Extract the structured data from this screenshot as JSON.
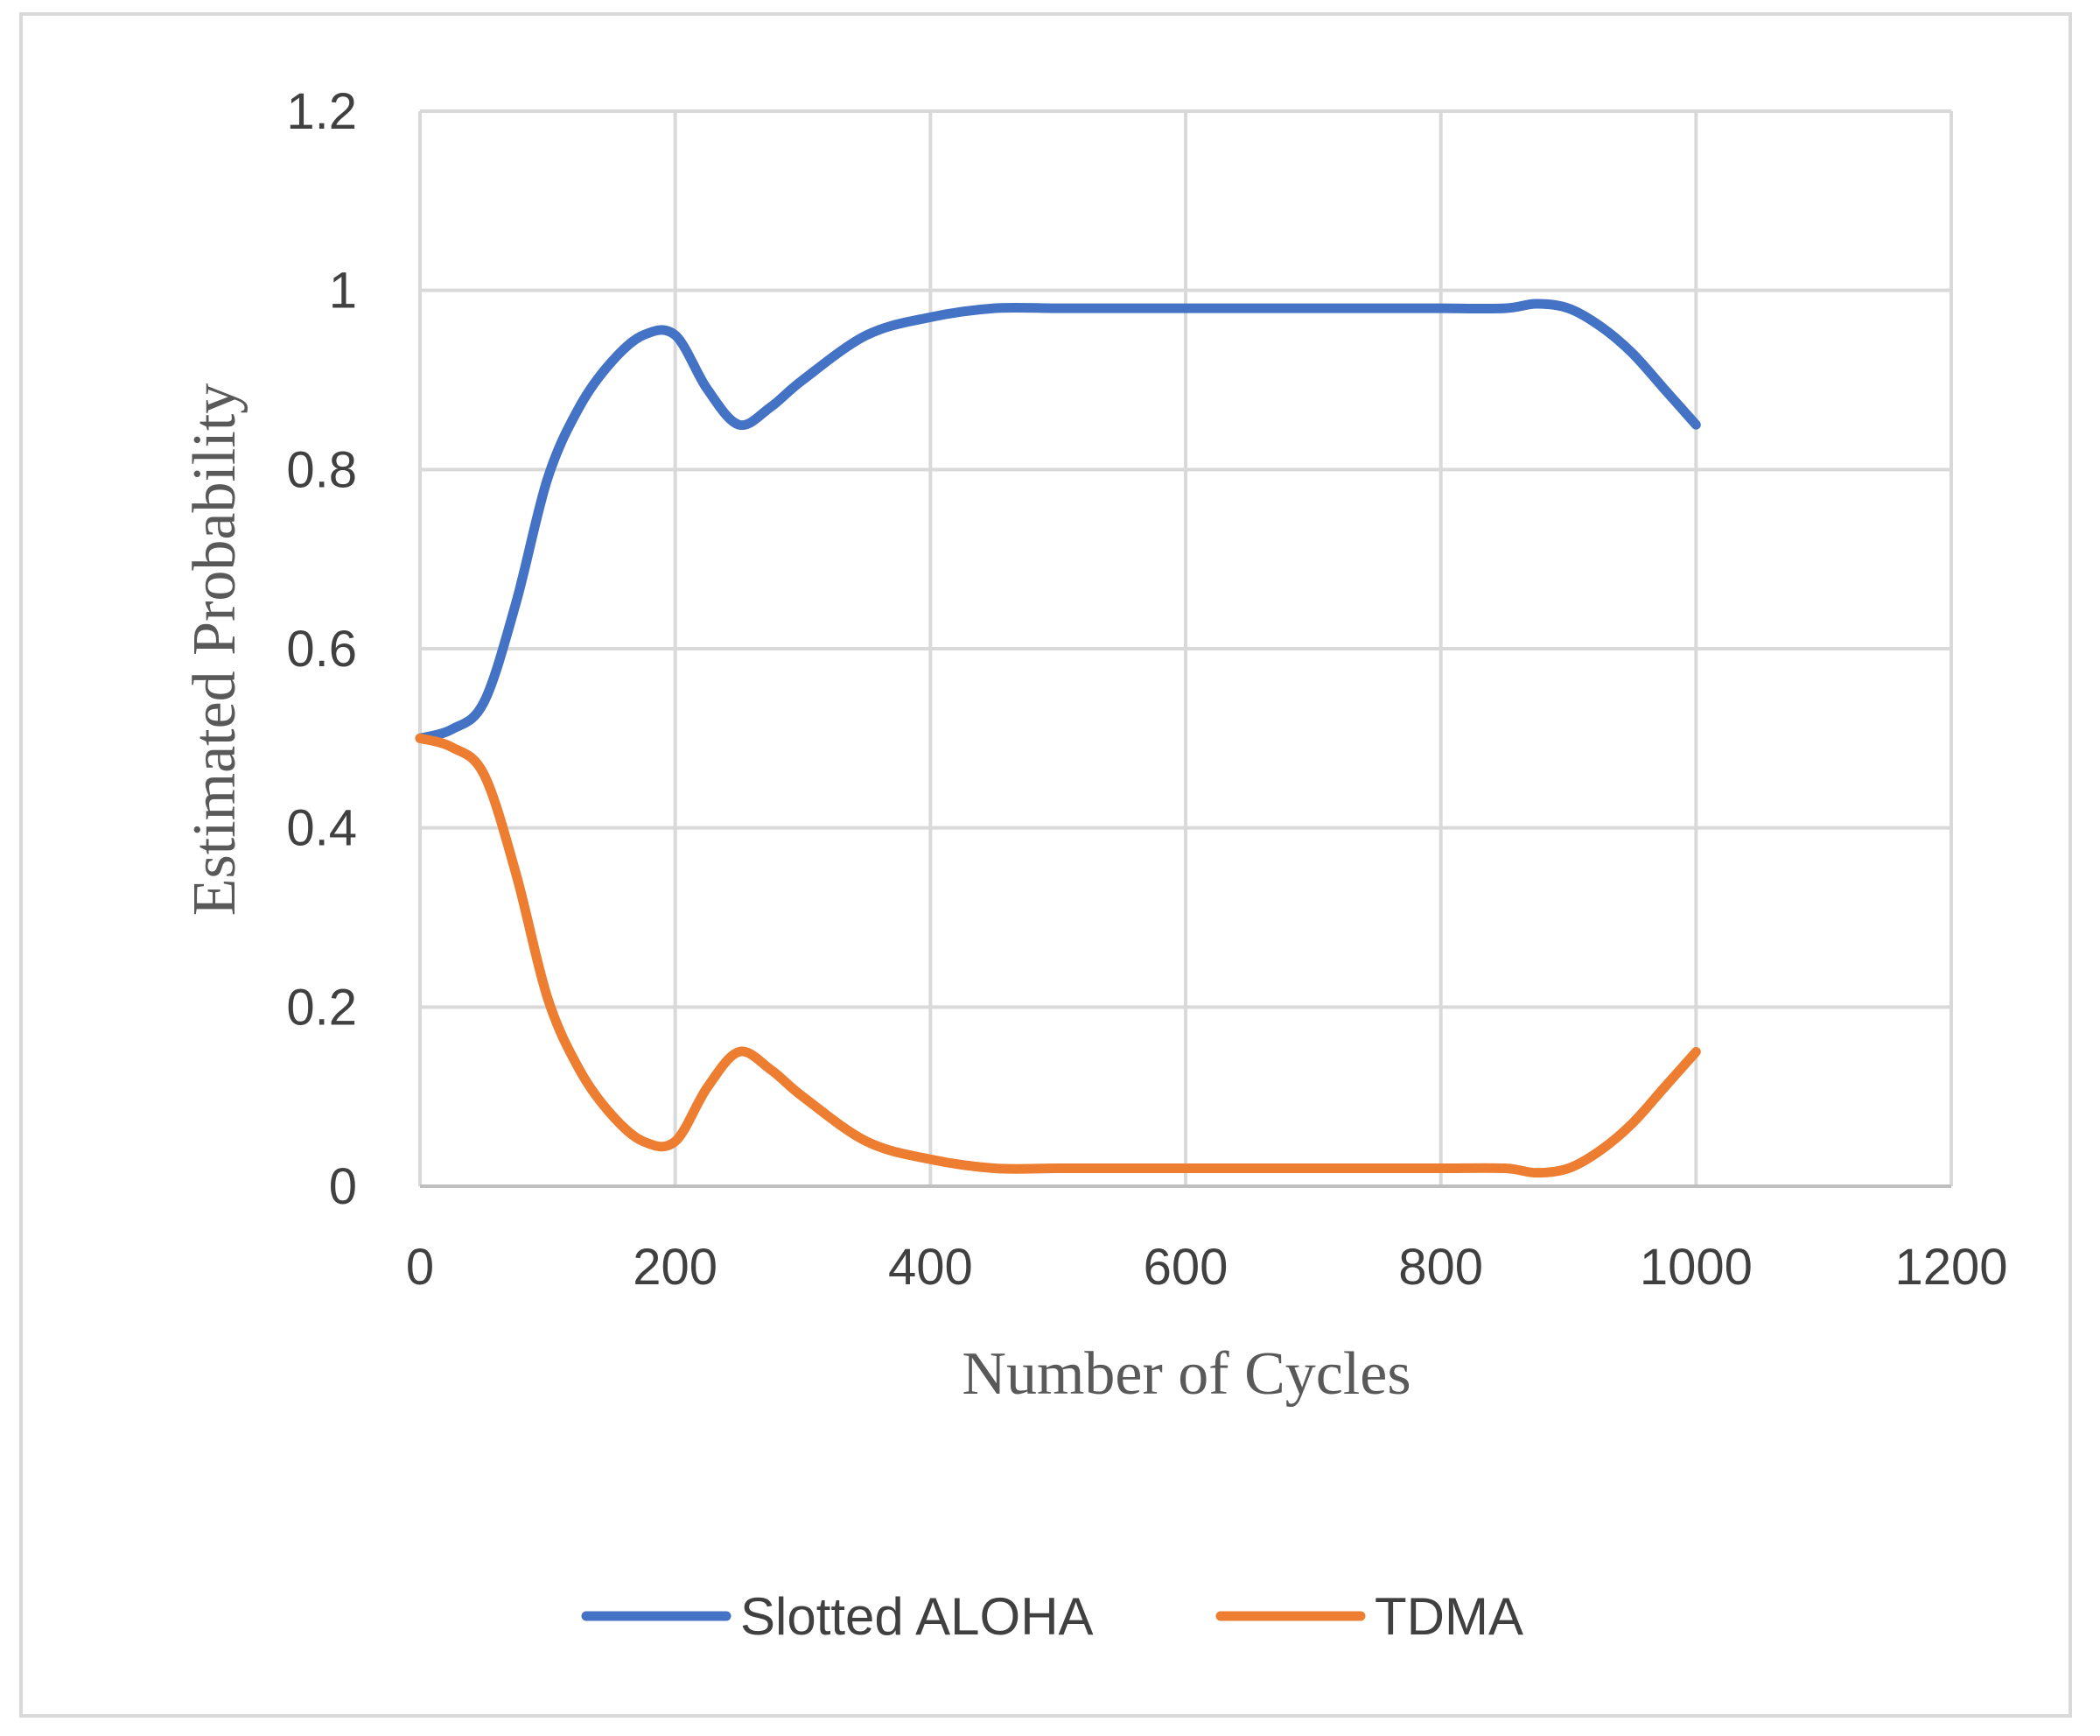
{
  "chart_data": {
    "type": "line",
    "title": "",
    "xlabel": "Number of Cycles",
    "ylabel": "Estimated Probability",
    "xlim": [
      0,
      1200
    ],
    "ylim": [
      0,
      1.2
    ],
    "xticks": [
      "0",
      "200",
      "400",
      "600",
      "800",
      "1000",
      "1200"
    ],
    "yticks": [
      "0",
      "0.2",
      "0.4",
      "0.6",
      "0.8",
      "1",
      "1.2"
    ],
    "grid": true,
    "legend_position": "bottom",
    "series": [
      {
        "name": "Slotted ALOHA",
        "color": "#4472c4",
        "x": [
          0,
          25,
          50,
          75,
          100,
          125,
          150,
          175,
          200,
          225,
          250,
          275,
          300,
          350,
          400,
          450,
          500,
          550,
          600,
          650,
          700,
          750,
          800,
          850,
          875,
          900,
          925,
          950,
          975,
          1000
        ],
        "y": [
          0.5,
          0.51,
          0.54,
          0.65,
          0.79,
          0.87,
          0.92,
          0.95,
          0.95,
          0.89,
          0.85,
          0.87,
          0.9,
          0.95,
          0.97,
          0.98,
          0.98,
          0.98,
          0.98,
          0.98,
          0.98,
          0.98,
          0.98,
          0.98,
          0.985,
          0.98,
          0.96,
          0.93,
          0.89,
          0.85
        ]
      },
      {
        "name": "TDMA",
        "color": "#ed7d31",
        "x": [
          0,
          25,
          50,
          75,
          100,
          125,
          150,
          175,
          200,
          225,
          250,
          275,
          300,
          350,
          400,
          450,
          500,
          550,
          600,
          650,
          700,
          750,
          800,
          850,
          875,
          900,
          925,
          950,
          975,
          1000
        ],
        "y": [
          0.5,
          0.49,
          0.46,
          0.35,
          0.21,
          0.13,
          0.08,
          0.05,
          0.05,
          0.11,
          0.15,
          0.13,
          0.1,
          0.05,
          0.03,
          0.02,
          0.02,
          0.02,
          0.02,
          0.02,
          0.02,
          0.02,
          0.02,
          0.02,
          0.015,
          0.02,
          0.04,
          0.07,
          0.11,
          0.15
        ]
      }
    ]
  }
}
